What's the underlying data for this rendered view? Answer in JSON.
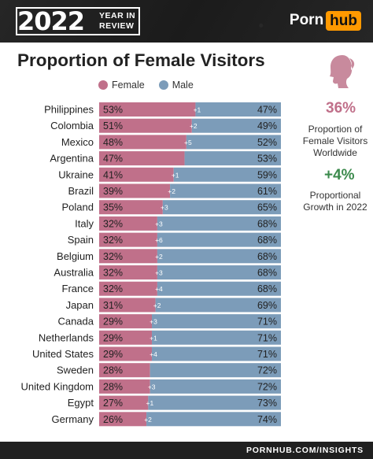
{
  "header": {
    "year": "2022",
    "year_subtitle_line1": "YEAR IN",
    "year_subtitle_line2": "REVIEW",
    "logo_part1": "Porn",
    "logo_part2": "hub"
  },
  "title": "Proportion of Female Visitors",
  "legend": {
    "female": "Female",
    "male": "Male"
  },
  "side": {
    "stat1": "36%",
    "caption1": "Proportion of Female Visitors Worldwide",
    "stat2": "+4%",
    "caption2": "Proportional Growth in 2022"
  },
  "footer": "PORNHUB.COM/INSIGHTS",
  "colors": {
    "female": "#c0708a",
    "male": "#7c9cb9",
    "header_bg": "#202020",
    "accent_orange": "#ff9900",
    "growth_green": "#3b8a4c"
  },
  "chart_data": {
    "type": "bar",
    "orientation": "horizontal",
    "stacked": true,
    "categories": [
      "Philippines",
      "Colombia",
      "Mexico",
      "Argentina",
      "Ukraine",
      "Brazil",
      "Poland",
      "Italy",
      "Spain",
      "Belgium",
      "Australia",
      "France",
      "Japan",
      "Canada",
      "Netherlands",
      "United States",
      "Sweden",
      "United Kingdom",
      "Egypt",
      "Germany"
    ],
    "series": [
      {
        "name": "Female",
        "values": [
          53,
          51,
          48,
          47,
          41,
          39,
          35,
          32,
          32,
          32,
          32,
          32,
          31,
          29,
          29,
          29,
          28,
          28,
          27,
          26
        ],
        "labels": [
          "53%",
          "51%",
          "48%",
          "47%",
          "41%",
          "39%",
          "35%",
          "32%",
          "32%",
          "32%",
          "32%",
          "32%",
          "31%",
          "29%",
          "29%",
          "29%",
          "28%",
          "28%",
          "27%",
          "26%"
        ]
      },
      {
        "name": "Male",
        "values": [
          47,
          49,
          52,
          53,
          59,
          61,
          65,
          68,
          68,
          68,
          68,
          68,
          69,
          71,
          71,
          71,
          72,
          72,
          73,
          74
        ],
        "labels": [
          "47%",
          "49%",
          "52%",
          "53%",
          "59%",
          "61%",
          "65%",
          "68%",
          "68%",
          "68%",
          "68%",
          "68%",
          "69%",
          "71%",
          "71%",
          "71%",
          "72%",
          "72%",
          "73%",
          "74%"
        ]
      }
    ],
    "growth_labels": [
      "+1",
      "+2",
      "+5",
      "",
      "+1",
      "+2",
      "+3",
      "+3",
      "+6",
      "+2",
      "+3",
      "+4",
      "+2",
      "+3",
      "+1",
      "+4",
      "",
      "+3",
      "+1",
      "+2"
    ],
    "xlim": [
      0,
      100
    ]
  }
}
